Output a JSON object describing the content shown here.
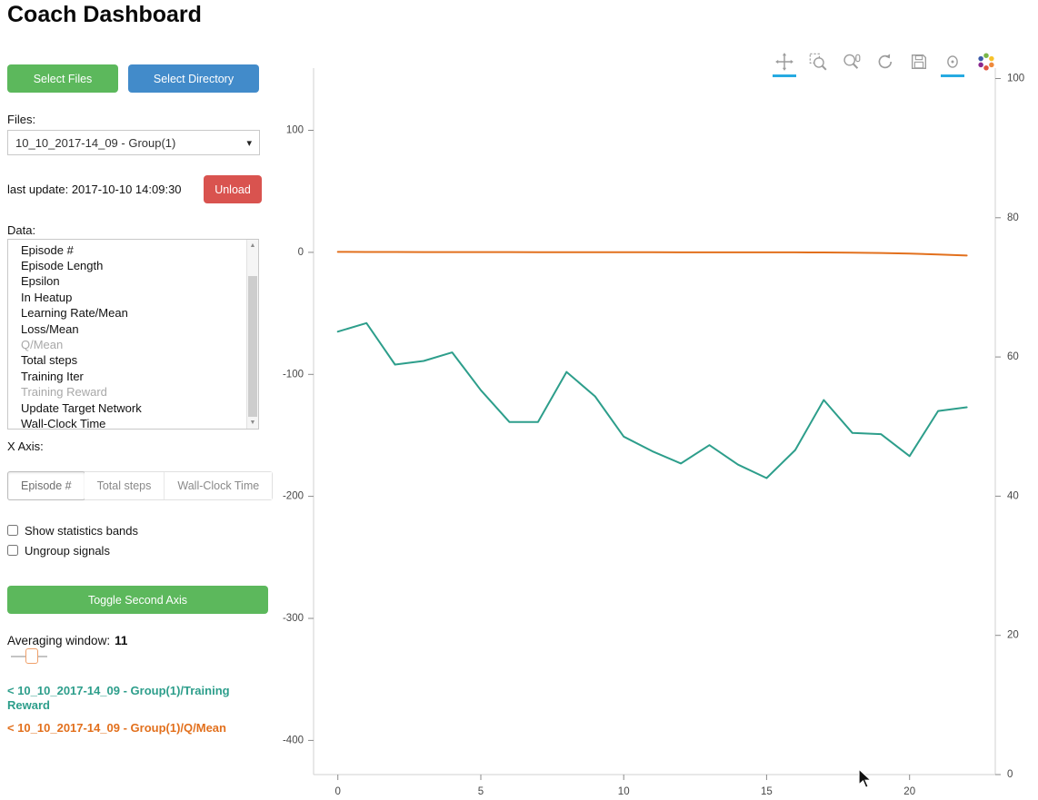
{
  "header": {
    "title": "Coach Dashboard"
  },
  "icons": {
    "dropdown_caret": "▾",
    "scroll_up": "▲",
    "scroll_down": "▼"
  },
  "sidebar": {
    "select_files_label": "Select Files",
    "select_directory_label": "Select Directory",
    "files_label": "Files:",
    "files_dropdown_value": "10_10_2017-14_09 - Group(1)",
    "last_update_text": "last update: 2017-10-10 14:09:30",
    "unload_label": "Unload",
    "data_label": "Data:",
    "data_items": [
      {
        "label": "Episode #",
        "dimmed": false
      },
      {
        "label": "Episode Length",
        "dimmed": false
      },
      {
        "label": "Epsilon",
        "dimmed": false
      },
      {
        "label": "In Heatup",
        "dimmed": false
      },
      {
        "label": "Learning Rate/Mean",
        "dimmed": false
      },
      {
        "label": "Loss/Mean",
        "dimmed": false
      },
      {
        "label": "Q/Mean",
        "dimmed": true
      },
      {
        "label": "Total steps",
        "dimmed": false
      },
      {
        "label": "Training Iter",
        "dimmed": false
      },
      {
        "label": "Training Reward",
        "dimmed": true
      },
      {
        "label": "Update Target Network",
        "dimmed": false
      },
      {
        "label": "Wall-Clock Time",
        "dimmed": false
      }
    ],
    "x_axis_label": "X Axis:",
    "x_axis_options": [
      {
        "label": "Episode #",
        "active": true
      },
      {
        "label": "Total steps",
        "active": false
      },
      {
        "label": "Wall-Clock Time",
        "active": false
      }
    ],
    "checkboxes": [
      {
        "label": "Show statistics bands",
        "checked": false
      },
      {
        "label": "Ungroup signals",
        "checked": false
      }
    ],
    "toggle_second_axis_label": "Toggle Second Axis",
    "averaging_window_label": "Averaging window:",
    "averaging_window_value": "11",
    "legend": [
      {
        "label": "< 10_10_2017-14_09 - Group(1)/Training Reward",
        "color": "#2d9e8b"
      },
      {
        "label": "< 10_10_2017-14_09 - Group(1)/Q/Mean",
        "color": "#e2701d"
      }
    ]
  },
  "toolbar": {
    "active_color": "#26aae1",
    "tools": [
      {
        "name": "pan",
        "active": true
      },
      {
        "name": "box-zoom",
        "active": false
      },
      {
        "name": "wheel-zoom",
        "active": false
      },
      {
        "name": "reset",
        "active": false
      },
      {
        "name": "save",
        "active": false
      },
      {
        "name": "hover",
        "active": true
      },
      {
        "name": "bokeh-logo",
        "active": false
      }
    ]
  },
  "chart_data": {
    "type": "line",
    "x": [
      0,
      1,
      2,
      3,
      4,
      5,
      6,
      7,
      8,
      9,
      10,
      11,
      12,
      13,
      14,
      15,
      16,
      17,
      18,
      19,
      20,
      21,
      22
    ],
    "series": [
      {
        "name": "10_10_2017-14_09 - Group(1)/Training Reward",
        "color": "#2d9e8b",
        "axis": "left",
        "values": [
          -65,
          -58,
          -92,
          -89,
          -82,
          -113,
          -139,
          -139,
          -98,
          -118,
          -151,
          -163,
          -173,
          -158,
          -174,
          -185,
          -162,
          -121,
          -148,
          -149,
          -167,
          -130,
          -127
        ]
      },
      {
        "name": "10_10_2017-14_09 - Group(1)/Q/Mean",
        "color": "#e2701d",
        "axis": "left",
        "values": [
          0.4,
          0.3,
          0.3,
          0.2,
          0.2,
          0.2,
          0.2,
          0.1,
          0.1,
          0.1,
          0.1,
          0.1,
          0,
          0,
          0,
          0,
          0,
          -0.1,
          -0.2,
          -0.5,
          -1,
          -1.8,
          -2.6
        ]
      }
    ],
    "x_ticks": [
      0,
      5,
      10,
      15,
      20
    ],
    "left_ticks": [
      100,
      0,
      -100,
      -200,
      -300,
      -400
    ],
    "right_ticks": [
      100,
      80,
      60,
      40,
      20,
      0
    ],
    "x_range": [
      -0.85,
      23.0
    ],
    "left_range": [
      -428,
      151
    ],
    "right_range": [
      0,
      101.5
    ],
    "grid": false,
    "legend_position": "left-sidebar"
  }
}
